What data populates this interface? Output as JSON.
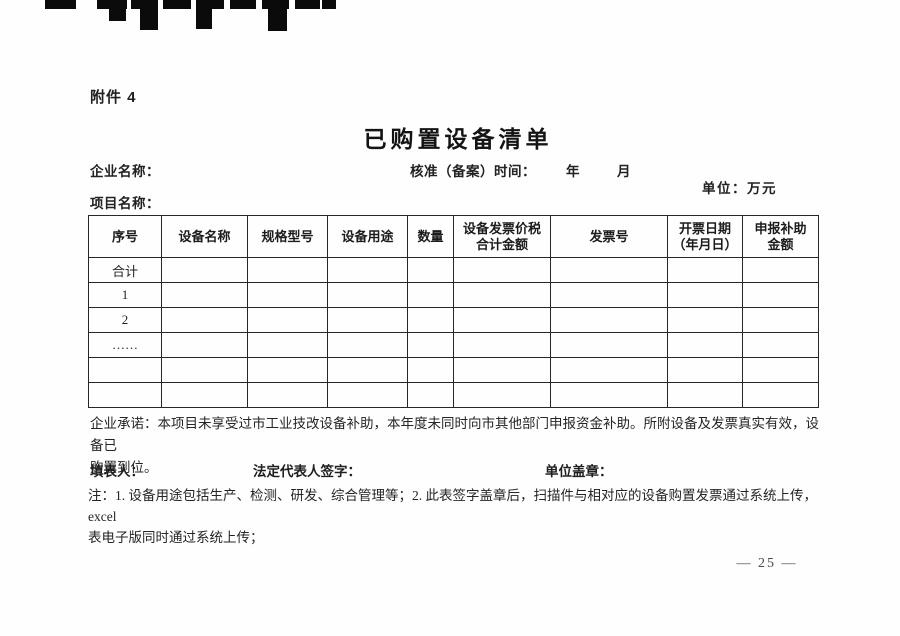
{
  "page": {
    "attachment_label": "附件 4",
    "title": "已购置设备清单",
    "page_number": "— 25 —"
  },
  "meta": {
    "company_label": "企业名称：",
    "approval_time_label": "核准（备案）时间：",
    "year_label": "年",
    "month_label": "月",
    "unit_label": "单位：万元",
    "project_label": "项目名称："
  },
  "table": {
    "columns": [
      "序号",
      "设备名称",
      "规格型号",
      "设备用途",
      "数量",
      "设备发票价税\n合计金额",
      "发票号",
      "开票日期\n（年月日）",
      "申报补助\n金额"
    ],
    "rows": [
      "合计",
      "1",
      "2",
      "……",
      "",
      ""
    ]
  },
  "sections": {
    "commitment": "企业承诺：本项目未享受过市工业技改设备补助，本年度未同时向市其他部门申报资金补助。所附设备及发票真实有效，设备已\n购置到位。",
    "filler_label": "填表人：",
    "legal_rep_label": "法定代表人签字：",
    "seal_label": "单位盖章：",
    "note": "注：1. 设备用途包括生产、检测、研发、综合管理等；2. 此表签字盖章后，扫描件与相对应的设备购置发票通过系统上传，excel\n表电子版同时通过系统上传；"
  }
}
